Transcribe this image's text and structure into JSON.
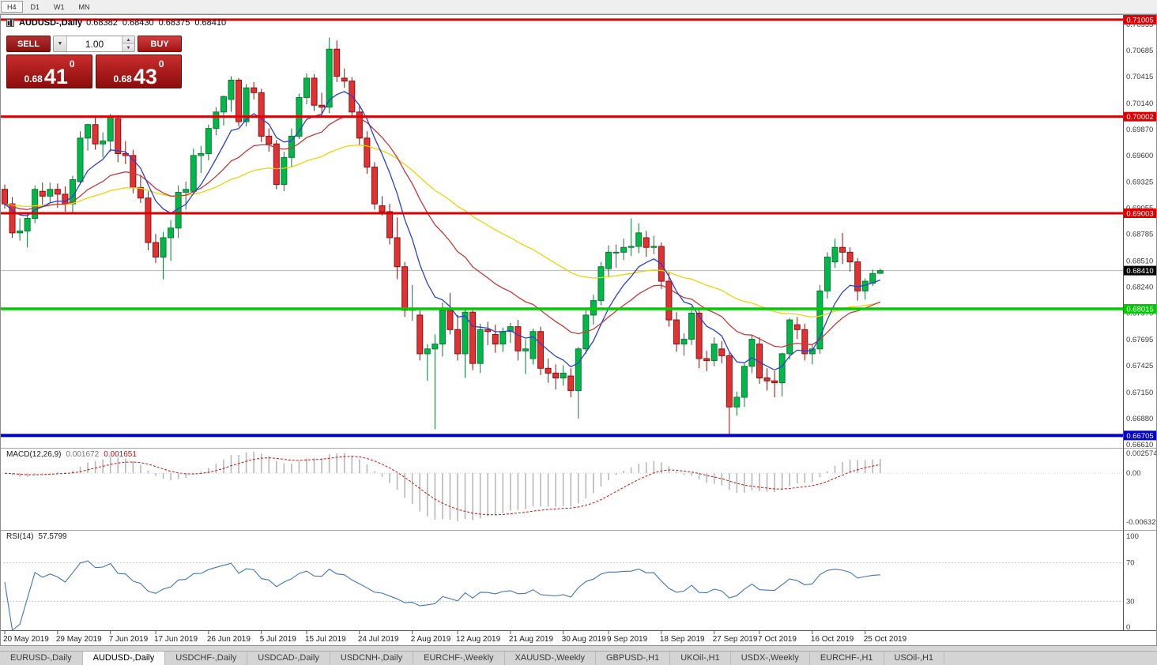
{
  "toolbar": {
    "timeframes": [
      "H4",
      "D1",
      "W1",
      "MN"
    ],
    "active_timeframe": "H4"
  },
  "chart": {
    "title": "AUDUSD-,Daily",
    "open": "0.68382",
    "high": "0.68430",
    "low": "0.68375",
    "close": "0.68410"
  },
  "trade_panel": {
    "sell_label": "SELL",
    "buy_label": "BUY",
    "volume": "1.00",
    "bid_prefix": "0.68",
    "bid_big": "41",
    "bid_sup": "0",
    "ask_prefix": "0.68",
    "ask_big": "43",
    "ask_sup": "0"
  },
  "price_axis": {
    "labels": [
      "0.70955",
      "0.70685",
      "0.70415",
      "0.70140",
      "0.69870",
      "0.69600",
      "0.69325",
      "0.69055",
      "0.68785",
      "0.68510",
      "0.68240",
      "0.67970",
      "0.67695",
      "0.67425",
      "0.67150",
      "0.66880",
      "0.66610"
    ]
  },
  "levels": [
    {
      "price": 0.71005,
      "label": "0.71005",
      "color": "#dd0000",
      "thickness": 3,
      "kind": "resistance"
    },
    {
      "price": 0.70002,
      "label": "0.70002",
      "color": "#dd0000",
      "thickness": 3,
      "kind": "resistance"
    },
    {
      "price": 0.69003,
      "label": "0.69003",
      "color": "#dd0000",
      "thickness": 3,
      "kind": "resistance"
    },
    {
      "price": 0.68015,
      "label": "0.68015",
      "color": "#00cc00",
      "thickness": 3.5,
      "kind": "support"
    },
    {
      "price": 0.66705,
      "label": "0.66705",
      "color": "#0000cc",
      "thickness": 4,
      "kind": "support"
    },
    {
      "price": 0.6841,
      "label": "0.68410",
      "color": "#000000",
      "thickness": 1,
      "kind": "bid",
      "line_color": "#b4b4b4"
    }
  ],
  "macd": {
    "label": "MACD(12,26,9)",
    "value_main": "0.001672",
    "value_signal": "0.001651",
    "axis": [
      {
        "text": "0.002574",
        "value": 0.002574
      },
      {
        "text": "0.00",
        "value": 0
      },
      {
        "text": "-0.006326",
        "value": -0.006326
      }
    ]
  },
  "rsi": {
    "label": "RSI(14)",
    "value": "57.5799",
    "axis": [
      {
        "text": "100",
        "value": 100
      },
      {
        "text": "70",
        "value": 70
      },
      {
        "text": "30",
        "value": 30
      },
      {
        "text": "0",
        "value": 0
      }
    ],
    "level_lines": [
      70,
      30
    ]
  },
  "tabs": {
    "items": [
      "EURUSD-,Daily",
      "AUDUSD-,Daily",
      "USDCHF-,Daily",
      "USDCAD-,Daily",
      "USDCNH-,Daily",
      "EURCHF-,Weekly",
      "XAUUSD-,Weekly",
      "GBPUSD-,H1",
      "UKOil-,H1",
      "USDX-,Weekly",
      "EURCHF-,H1",
      "USOil-,H1"
    ],
    "active_index": 1
  },
  "chart_data": {
    "type": "candlestick",
    "symbol": "AUDUSD",
    "timeframe": "Daily",
    "up_color": "#00b84a",
    "up_border": "#0b7a33",
    "down_color": "#e03232",
    "down_border": "#8f1010",
    "indicators": {
      "moving_averages": [
        {
          "type": "ema",
          "period": 8,
          "color": "#2b3fd4"
        },
        {
          "type": "ema",
          "period": 21,
          "color": "#c23b3b"
        },
        {
          "type": "ema",
          "period": 50,
          "color": "#e6d50a"
        }
      ],
      "macd": {
        "fast": 12,
        "slow": 26,
        "signal": 9,
        "histogram_color": "#b8b8b8",
        "signal_color": "#cc1111"
      },
      "rsi": {
        "period": 14,
        "color": "#4176b5"
      }
    },
    "x_labels": [
      {
        "i": 0,
        "label": "20 May 2019"
      },
      {
        "i": 7,
        "label": "29 May 2019"
      },
      {
        "i": 14,
        "label": "7 Jun 2019"
      },
      {
        "i": 20,
        "label": "17 Jun 2019"
      },
      {
        "i": 27,
        "label": "26 Jun 2019"
      },
      {
        "i": 34,
        "label": "5 Jul 2019"
      },
      {
        "i": 40,
        "label": "15 Jul 2019"
      },
      {
        "i": 47,
        "label": "24 Jul 2019"
      },
      {
        "i": 54,
        "label": "2 Aug 2019"
      },
      {
        "i": 60,
        "label": "12 Aug 2019"
      },
      {
        "i": 67,
        "label": "21 Aug 2019"
      },
      {
        "i": 74,
        "label": "30 Aug 2019"
      },
      {
        "i": 80,
        "label": "9 Sep 2019"
      },
      {
        "i": 87,
        "label": "18 Sep 2019"
      },
      {
        "i": 94,
        "label": "27 Sep 2019"
      },
      {
        "i": 100,
        "label": "7 Oct 2019"
      },
      {
        "i": 107,
        "label": "16 Oct 2019"
      },
      {
        "i": 114,
        "label": "25 Oct 2019"
      }
    ],
    "ohlc": [
      [
        0.6925,
        0.693,
        0.6905,
        0.691
      ],
      [
        0.691,
        0.6917,
        0.6875,
        0.688
      ],
      [
        0.688,
        0.6895,
        0.6872,
        0.6882
      ],
      [
        0.6882,
        0.69,
        0.6865,
        0.6895
      ],
      [
        0.6895,
        0.6929,
        0.689,
        0.6925
      ],
      [
        0.6923,
        0.6932,
        0.6909,
        0.6918
      ],
      [
        0.6918,
        0.6932,
        0.6911,
        0.6925
      ],
      [
        0.6925,
        0.6931,
        0.6906,
        0.692
      ],
      [
        0.692,
        0.6928,
        0.6902,
        0.691
      ],
      [
        0.691,
        0.6939,
        0.6901,
        0.6935
      ],
      [
        0.6933,
        0.6985,
        0.693,
        0.6978
      ],
      [
        0.6978,
        0.6993,
        0.6965,
        0.6992
      ],
      [
        0.6992,
        0.7,
        0.6966,
        0.6972
      ],
      [
        0.6972,
        0.6984,
        0.6958,
        0.6975
      ],
      [
        0.6975,
        0.7003,
        0.6964,
        0.7
      ],
      [
        0.6998,
        0.7002,
        0.6953,
        0.6962
      ],
      [
        0.6962,
        0.6975,
        0.6951,
        0.696
      ],
      [
        0.696,
        0.6966,
        0.6921,
        0.6927
      ],
      [
        0.6927,
        0.694,
        0.6911,
        0.6916
      ],
      [
        0.6916,
        0.6923,
        0.6862,
        0.687
      ],
      [
        0.687,
        0.6879,
        0.6849,
        0.6855
      ],
      [
        0.6855,
        0.6881,
        0.6832,
        0.6875
      ],
      [
        0.6875,
        0.6893,
        0.6851,
        0.6885
      ],
      [
        0.6885,
        0.6929,
        0.6875,
        0.6922
      ],
      [
        0.6922,
        0.6933,
        0.6904,
        0.6925
      ],
      [
        0.6923,
        0.6967,
        0.692,
        0.696
      ],
      [
        0.696,
        0.697,
        0.6942,
        0.6962
      ],
      [
        0.6962,
        0.6992,
        0.6955,
        0.6988
      ],
      [
        0.6988,
        0.701,
        0.6981,
        0.7005
      ],
      [
        0.7005,
        0.7022,
        0.6991,
        0.7021
      ],
      [
        0.7018,
        0.7042,
        0.7005,
        0.7038
      ],
      [
        0.7038,
        0.704,
        0.699,
        0.6995
      ],
      [
        0.6995,
        0.7034,
        0.699,
        0.703
      ],
      [
        0.703,
        0.7036,
        0.7018,
        0.7025
      ],
      [
        0.7025,
        0.7029,
        0.6974,
        0.698
      ],
      [
        0.698,
        0.6988,
        0.6964,
        0.6972
      ],
      [
        0.6972,
        0.6976,
        0.6925,
        0.693
      ],
      [
        0.693,
        0.6964,
        0.6923,
        0.6958
      ],
      [
        0.6958,
        0.6988,
        0.6948,
        0.698
      ],
      [
        0.698,
        0.7024,
        0.6977,
        0.702
      ],
      [
        0.702,
        0.7045,
        0.7013,
        0.704
      ],
      [
        0.704,
        0.7044,
        0.7006,
        0.7012
      ],
      [
        0.7012,
        0.7025,
        0.7001,
        0.701
      ],
      [
        0.701,
        0.7082,
        0.7004,
        0.707
      ],
      [
        0.707,
        0.7079,
        0.7036,
        0.7042
      ],
      [
        0.704,
        0.705,
        0.703,
        0.7037
      ],
      [
        0.7037,
        0.7041,
        0.6999,
        0.7005
      ],
      [
        0.7005,
        0.7012,
        0.6971,
        0.6978
      ],
      [
        0.6978,
        0.6985,
        0.6941,
        0.6948
      ],
      [
        0.6948,
        0.6953,
        0.6904,
        0.691
      ],
      [
        0.6908,
        0.6918,
        0.6898,
        0.6902
      ],
      [
        0.6902,
        0.691,
        0.6868,
        0.6875
      ],
      [
        0.6875,
        0.6896,
        0.6832,
        0.6845
      ],
      [
        0.6845,
        0.685,
        0.6793,
        0.68
      ],
      [
        0.68,
        0.6826,
        0.6789,
        0.6802
      ],
      [
        0.6795,
        0.68,
        0.6748,
        0.6755
      ],
      [
        0.6755,
        0.6765,
        0.6727,
        0.676
      ],
      [
        0.676,
        0.6775,
        0.6677,
        0.6765
      ],
      [
        0.6765,
        0.6808,
        0.6752,
        0.68
      ],
      [
        0.68,
        0.6818,
        0.6775,
        0.678
      ],
      [
        0.678,
        0.6795,
        0.6748,
        0.6755
      ],
      [
        0.6755,
        0.6801,
        0.673,
        0.6798
      ],
      [
        0.6798,
        0.68,
        0.6738,
        0.6745
      ],
      [
        0.6745,
        0.6786,
        0.6735,
        0.678
      ],
      [
        0.678,
        0.6788,
        0.6764,
        0.6778
      ],
      [
        0.6775,
        0.6785,
        0.6756,
        0.6765
      ],
      [
        0.6765,
        0.6782,
        0.6757,
        0.6778
      ],
      [
        0.6778,
        0.6787,
        0.6766,
        0.6783
      ],
      [
        0.6783,
        0.679,
        0.6748,
        0.6758
      ],
      [
        0.6758,
        0.677,
        0.6734,
        0.676
      ],
      [
        0.675,
        0.6781,
        0.6744,
        0.6778
      ],
      [
        0.6778,
        0.6783,
        0.6733,
        0.674
      ],
      [
        0.674,
        0.675,
        0.6725,
        0.6735
      ],
      [
        0.6735,
        0.6744,
        0.6718,
        0.673
      ],
      [
        0.673,
        0.6743,
        0.6722,
        0.6735
      ],
      [
        0.6732,
        0.674,
        0.671,
        0.6717
      ],
      [
        0.6717,
        0.6762,
        0.6688,
        0.676
      ],
      [
        0.676,
        0.68,
        0.6755,
        0.6795
      ],
      [
        0.6795,
        0.6816,
        0.6785,
        0.681
      ],
      [
        0.681,
        0.685,
        0.6805,
        0.6845
      ],
      [
        0.6843,
        0.6867,
        0.6835,
        0.686
      ],
      [
        0.686,
        0.6868,
        0.6844,
        0.686
      ],
      [
        0.686,
        0.6874,
        0.6852,
        0.6865
      ],
      [
        0.6865,
        0.6895,
        0.6856,
        0.6866
      ],
      [
        0.6866,
        0.689,
        0.6859,
        0.688
      ],
      [
        0.6875,
        0.6882,
        0.6855,
        0.6865
      ],
      [
        0.6865,
        0.6877,
        0.6858,
        0.6866
      ],
      [
        0.6866,
        0.687,
        0.6822,
        0.683
      ],
      [
        0.683,
        0.684,
        0.6783,
        0.679
      ],
      [
        0.679,
        0.6798,
        0.6757,
        0.6765
      ],
      [
        0.6765,
        0.6776,
        0.6753,
        0.677
      ],
      [
        0.677,
        0.6804,
        0.6764,
        0.6797
      ],
      [
        0.6797,
        0.68,
        0.674,
        0.675
      ],
      [
        0.675,
        0.6758,
        0.6737,
        0.6748
      ],
      [
        0.6748,
        0.6772,
        0.6742,
        0.6765
      ],
      [
        0.676,
        0.6768,
        0.6745,
        0.6753
      ],
      [
        0.6753,
        0.6756,
        0.66705,
        0.67
      ],
      [
        0.67,
        0.6716,
        0.6691,
        0.671
      ],
      [
        0.671,
        0.6745,
        0.67,
        0.6742
      ],
      [
        0.6742,
        0.6774,
        0.6735,
        0.677
      ],
      [
        0.6765,
        0.6772,
        0.6724,
        0.673
      ],
      [
        0.673,
        0.674,
        0.6717,
        0.6727
      ],
      [
        0.6727,
        0.6737,
        0.671,
        0.6725
      ],
      [
        0.6725,
        0.6756,
        0.6711,
        0.6755
      ],
      [
        0.6755,
        0.6792,
        0.6749,
        0.679
      ],
      [
        0.6785,
        0.6793,
        0.677,
        0.678
      ],
      [
        0.678,
        0.6786,
        0.6748,
        0.6755
      ],
      [
        0.6755,
        0.6765,
        0.6744,
        0.676
      ],
      [
        0.676,
        0.6826,
        0.6755,
        0.682
      ],
      [
        0.682,
        0.686,
        0.6812,
        0.6855
      ],
      [
        0.685,
        0.6874,
        0.6844,
        0.6865
      ],
      [
        0.6865,
        0.688,
        0.6848,
        0.686
      ],
      [
        0.686,
        0.6865,
        0.684,
        0.685
      ],
      [
        0.685,
        0.6854,
        0.681,
        0.682
      ],
      [
        0.682,
        0.6833,
        0.6811,
        0.683
      ],
      [
        0.6828,
        0.6842,
        0.6825,
        0.6838
      ],
      [
        0.68382,
        0.6843,
        0.68375,
        0.6841
      ]
    ]
  }
}
